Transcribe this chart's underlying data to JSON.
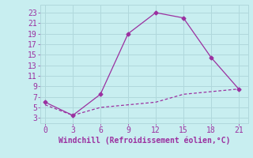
{
  "line1_x": [
    0,
    3,
    6,
    9,
    12,
    15,
    18,
    21
  ],
  "line1_y": [
    6,
    3.5,
    7.5,
    19,
    23,
    22,
    14.5,
    8.5
  ],
  "line2_x": [
    0,
    3,
    6,
    9,
    12,
    15,
    18,
    21
  ],
  "line2_y": [
    5.5,
    3.5,
    5.0,
    5.5,
    6.0,
    7.5,
    8.0,
    8.5
  ],
  "line_color": "#9b30a0",
  "xlim": [
    -0.5,
    22
  ],
  "ylim": [
    2,
    24.5
  ],
  "xticks": [
    0,
    3,
    6,
    9,
    12,
    15,
    18,
    21
  ],
  "yticks": [
    3,
    5,
    7,
    9,
    11,
    13,
    15,
    17,
    19,
    21,
    23
  ],
  "xlabel": "Windchill (Refroidissement éolien,°C)",
  "bg_color": "#c8eef0",
  "grid_color": "#b0d8dc",
  "tick_fontsize": 7,
  "xlabel_fontsize": 7
}
